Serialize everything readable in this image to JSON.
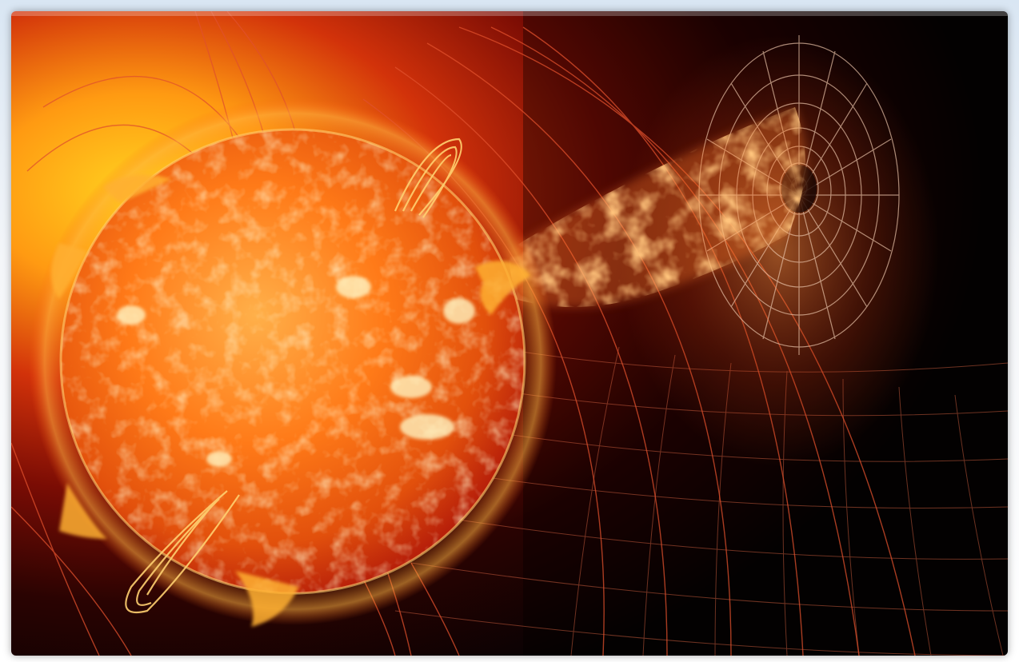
{
  "scene": {
    "subject": "sun",
    "elements": [
      "sun-disc",
      "solar-prominence",
      "coronal-loop",
      "coronal-mass-ejection",
      "magnetic-field-grid",
      "earth-magnetosphere"
    ],
    "colors": {
      "sun_core": "#ff7a18",
      "sun_edge": "#b8200a",
      "glow": "#ffc51a",
      "space": "#050203",
      "grid": "#e06040",
      "plasma": "#ff8a3a"
    }
  }
}
